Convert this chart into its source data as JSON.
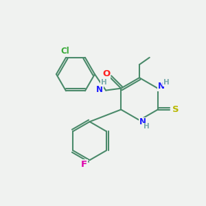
{
  "bg_color": "#f0f2f0",
  "bond_color": "#4a8a6a",
  "atom_colors": {
    "N": "#1a1aff",
    "O": "#ff2020",
    "S": "#b8b800",
    "Cl": "#3aaa3a",
    "F": "#dd00aa",
    "H": "#7aabab"
  },
  "line_width": 1.5,
  "font_size": 8.5
}
